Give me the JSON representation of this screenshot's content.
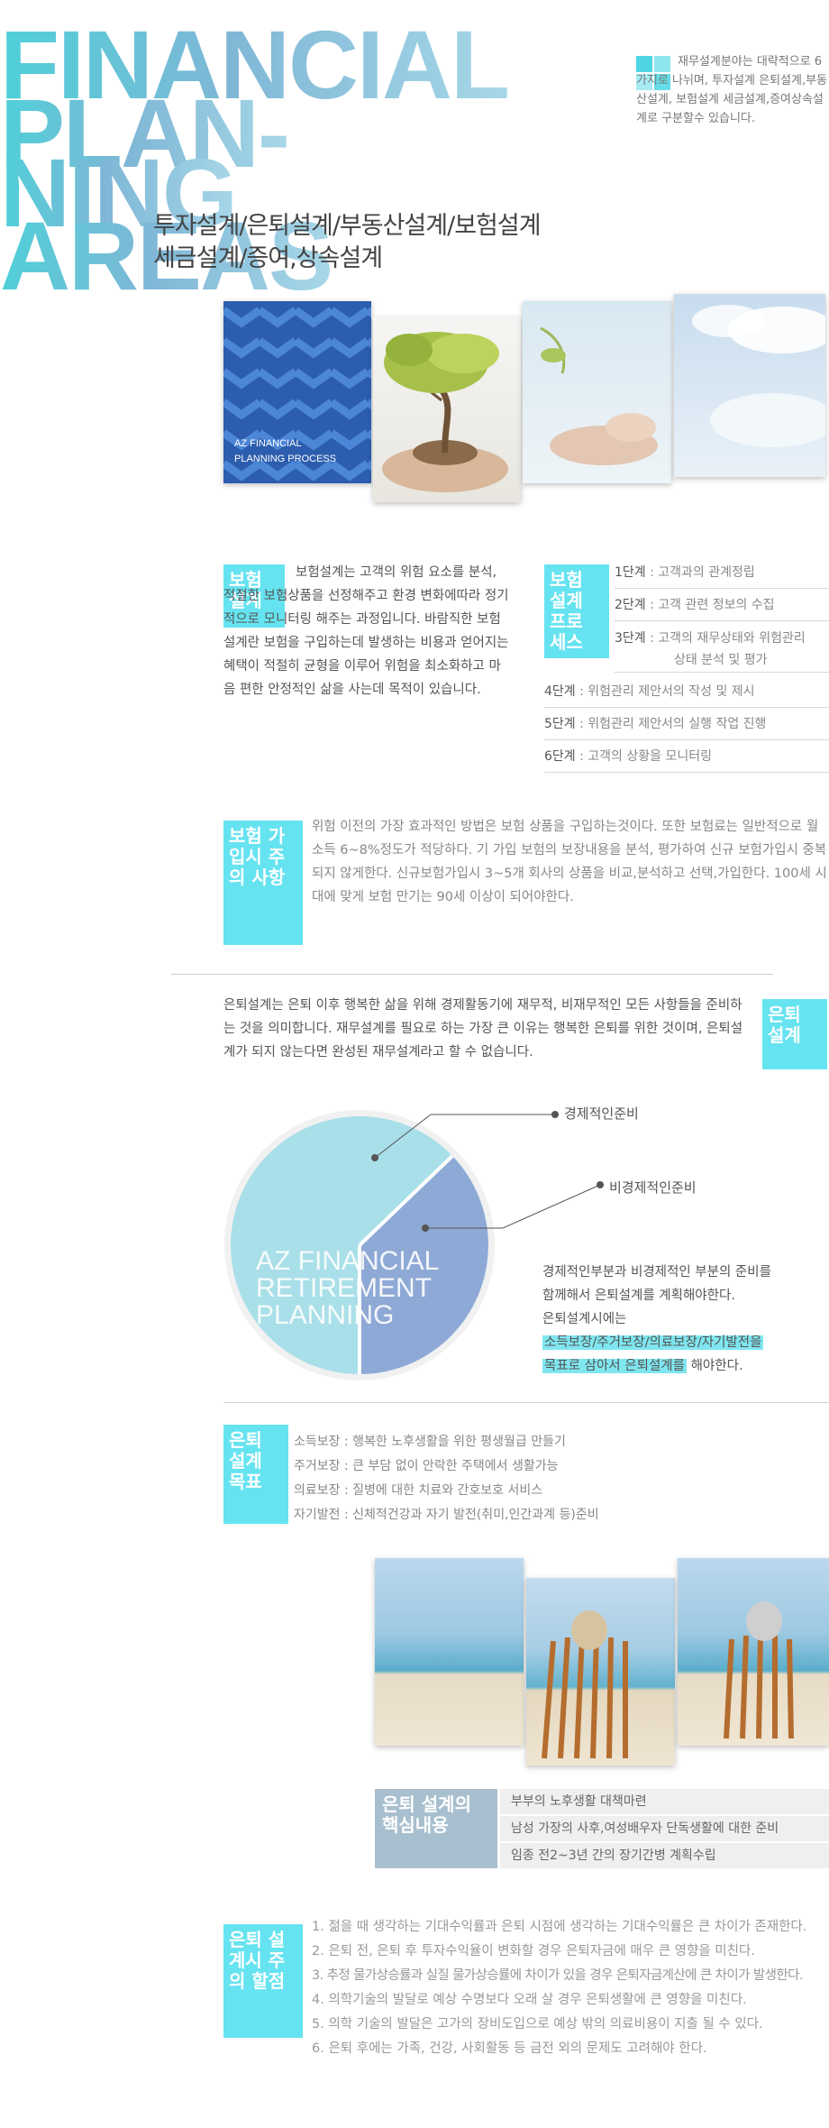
{
  "hero": {
    "line1": "FINANCIAL",
    "line2": "PLAN-",
    "line3": "NING",
    "line4": "AREAS",
    "sub1": "투자설계/은퇴설계/부동산설계/보험설계",
    "sub2": "세금설계/증여,상속설계"
  },
  "intro": {
    "text": "재무설계분야는 대략적으로 6가지로 나뉘며, 투자설계 은퇴설계,부동산설계, 보험설계 세금설계,증여상속설계로 구분할수 있습니다."
  },
  "cover": {
    "line1": "AZ FINANCIAL",
    "line2": "PLANNING PROCESS"
  },
  "insurance": {
    "tag": "보험 설계",
    "text": "보험설계는 고객의 위험 요소를 분석, 적절한 보험상품을 선정해주고 환경 변화에따라 정기적으로 모니터링 해주는 과정입니다. 바람직한 보험설계란 보험을 구입하는데 발생하는 비용과 얻어지는 혜택이 적절히 균형을 이루어 위험을 최소화하고 마음 편한 안정적인 삶을 사는데 목적이 있습니다."
  },
  "process": {
    "tag": "보험 설계 프로 세스",
    "steps": [
      {
        "label": "1단계",
        "text": " : 고객과의 관계정립"
      },
      {
        "label": "2단계",
        "text": " : 고객 관련 정보의 수집"
      },
      {
        "label": "3단계",
        "text": " : 고객의 재무상태와 위험관리"
      },
      {
        "label": "",
        "text": "상태 분석 및 평가"
      },
      {
        "label": "4단계",
        "text": " : 위험관리 제안서의 작성 및 제시"
      },
      {
        "label": "5단계",
        "text": " : 위험관리 제안서의 실행 작업 진행"
      },
      {
        "label": "6단계",
        "text": " : 고객의 상황을 모니터링"
      }
    ]
  },
  "subscribe": {
    "tag": "보험 가입시 주의 사항",
    "text": "위험 이전의 가장 효과적인 방법은 보험 상품을 구입하는것이다. 또한 보험료는 일반적으로 월소득 6~8%정도가 적당하다. 기 가입 보험의 보장내용을 분석, 평가하여 신규 보험가입시 중복되지 않게한다. 신규보험가입시 3~5개 회사의 상품을 비교,분석하고 선택,가입한다. 100세 시대에 맞게 보험 만기는 90세 이상이 되어야한다."
  },
  "retire": {
    "tag": "은퇴 설계",
    "text": "은퇴설계는 은퇴 이후 행복한 삶을 위해 경제활동기에 재무적, 비재무적인 모든 사항들을 준비하는 것을 의미합니다. 재무설계를 필요로 하는 가장 큰 이유는 행복한 은퇴를 위한 것이며, 은퇴설계가 되지 않는다면 완성된 재무설계라고 할 수 없습니다."
  },
  "circle": {
    "line1": "AZ FINANCIAL",
    "line2": "RETIREMENT",
    "line3": "PLANNING",
    "label_econ": "경제적인준비",
    "label_nonecon": "비경제적인준비"
  },
  "circle_desc": {
    "l1": "경제적인부분과 비경제적인 부분의 준비를",
    "l2": "함께해서 은퇴설계를 계획해야한다.",
    "l3": "은퇴설계시에는",
    "l4": "소득보장/주거보장/의료보장/자기발전을",
    "l5a": "목표로 삼아서 은퇴설계를",
    "l5b": " 해야한다."
  },
  "goals": {
    "tag": "은퇴 설계 목표",
    "items": [
      {
        "label": "소득보장",
        "text": " : 행복한 노후생활을 위한 평생월급 만들기"
      },
      {
        "label": "주거보장",
        "text": " : 큰 부담 없이 안락한 주택에서 생활가능"
      },
      {
        "label": "의료보장",
        "text": " : 질병에 대한 치료와 간호보호 서비스"
      },
      {
        "label": "자기발전",
        "text": " : 신체적건강과 자기 발전(취미,인간과계 등)준비"
      }
    ]
  },
  "core": {
    "tag1": "은퇴 설계의",
    "tag2": "핵심내용",
    "rows": [
      "부부의 노후생활 대책마련",
      "남성 가장의 사후,여성배우자 단독생활에 대한 준비",
      "임종 전2~3년 간의 장기간병 계획수립"
    ]
  },
  "caution": {
    "tag": "은퇴 설계시 주의 할점",
    "items": [
      "1. 젊을 때 생각하는 기대수익률과 은퇴 시점에 생각하는 기대수익률은 큰 차이가 존재한다.",
      "2. 은퇴 전, 은퇴 후 투자수익율이 변화할 경우 은퇴자금에 매우 큰 영향을 미친다.",
      "3. 추정 물가상승률과 실질 물가상승률에 차이가 있을 경우 은퇴자금계산에 큰 차이가 발생한다.",
      "4. 의학기술의 발달로 예상 수명보다 오래 살 경우 은퇴생활에 큰 영향을 미친다.",
      "5. 의학 기술의 발달은 고가의 장비도입으로 예상 밖의 의료비용이 지출 될 수 있다.",
      "6. 은퇴 후에는 가족, 건강, 사회활동 등 금전 외의 문제도 고려해야 한다."
    ]
  }
}
